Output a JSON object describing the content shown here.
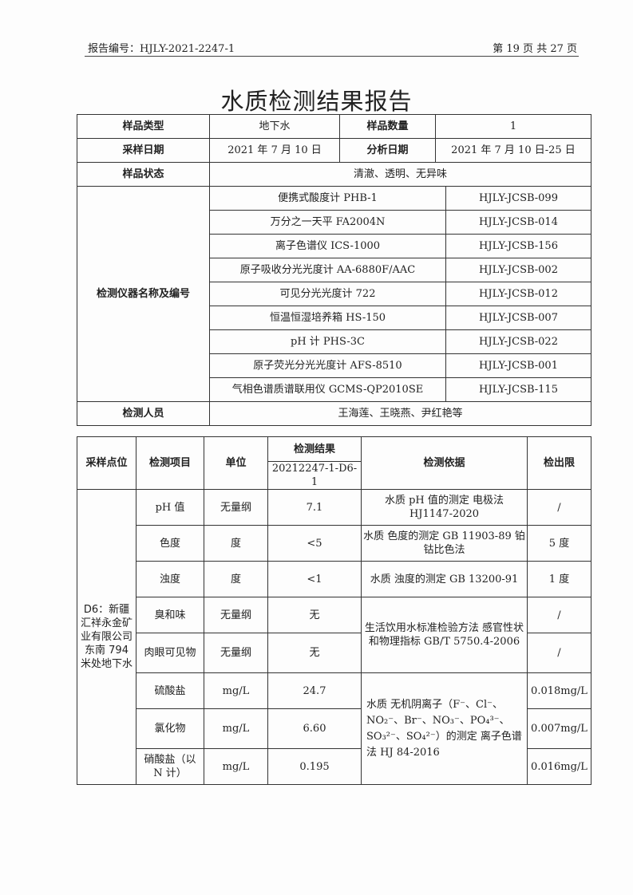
{
  "header": {
    "report_no": "报告编号：HJLY-2021-2247-1",
    "page": "第 19 页 共 27 页"
  },
  "title": "水质检测结果报告",
  "info": {
    "sample_type_label": "样品类型",
    "sample_type": "地下水",
    "sample_count_label": "样品数量",
    "sample_count": "1",
    "sampling_date_label": "采样日期",
    "sampling_date": "2021 年 7 月 10 日",
    "analysis_date_label": "分析日期",
    "analysis_date": "2021 年 7 月 10 日-25 日",
    "state_label": "样品状态",
    "state": "清澈、透明、无异味",
    "instruments_label": "检测仪器名称及编号",
    "instruments": [
      {
        "name": "便携式酸度计 PHB-1",
        "code": "HJLY-JCSB-099"
      },
      {
        "name": "万分之一天平 FA2004N",
        "code": "HJLY-JCSB-014"
      },
      {
        "name": "离子色谱仪 ICS-1000",
        "code": "HJLY-JCSB-156"
      },
      {
        "name": "原子吸收分光光度计 AA-6880F/AAC",
        "code": "HJLY-JCSB-002"
      },
      {
        "name": "可见分光光度计 722",
        "code": "HJLY-JCSB-012"
      },
      {
        "name": "恒温恒湿培养箱 HS-150",
        "code": "HJLY-JCSB-007"
      },
      {
        "name": "pH 计 PHS-3C",
        "code": "HJLY-JCSB-022"
      },
      {
        "name": "原子荧光分光光度计 AFS-8510",
        "code": "HJLY-JCSB-001"
      },
      {
        "name": "气相色谱质谱联用仪 GCMS-QP2010SE",
        "code": "HJLY-JCSB-115"
      }
    ],
    "personnel_label": "检测人员",
    "personnel": "王海莲、王晓燕、尹红艳等"
  },
  "results": {
    "headers": {
      "point": "采样点位",
      "item": "检测项目",
      "unit": "单位",
      "result": "检测结果",
      "sample_id": "20212247-1-D6-1",
      "basis": "检测依据",
      "limit": "检出限"
    },
    "point": "D6：新疆汇祥永金矿业有限公司东南 794 米处地下水",
    "rows": [
      {
        "item": "pH 值",
        "unit": "无量纲",
        "value": "7.1",
        "basis": "水质 pH 值的测定 电极法 HJ1147-2020",
        "limit": "/"
      },
      {
        "item": "色度",
        "unit": "度",
        "value": "<5",
        "basis": "水质 色度的测定 GB 11903-89 铂钴比色法",
        "limit": "5 度"
      },
      {
        "item": "浊度",
        "unit": "度",
        "value": "<1",
        "basis": "水质 浊度的测定 GB 13200-91",
        "limit": "1 度"
      },
      {
        "item": "臭和味",
        "unit": "无量纲",
        "value": "无",
        "basis": "生活饮用水标准检验方法 感官性状和物理指标 GB/T 5750.4-2006",
        "limit": "/"
      },
      {
        "item": "肉眼可见物",
        "unit": "无量纲",
        "value": "无",
        "limit": "/"
      },
      {
        "item": "硫酸盐",
        "unit": "mg/L",
        "value": "24.7",
        "basis": "水质 无机阴离子（F⁻、Cl⁻、NO₂⁻、Br⁻、NO₃⁻、PO₄³⁻、SO₃²⁻、SO₄²⁻）的测定 离子色谱法 HJ 84-2016",
        "limit": "0.018mg/L"
      },
      {
        "item": "氯化物",
        "unit": "mg/L",
        "value": "6.60",
        "limit": "0.007mg/L"
      },
      {
        "item": "硝酸盐（以 N 计）",
        "unit": "mg/L",
        "value": "0.195",
        "limit": "0.016mg/L"
      }
    ]
  }
}
